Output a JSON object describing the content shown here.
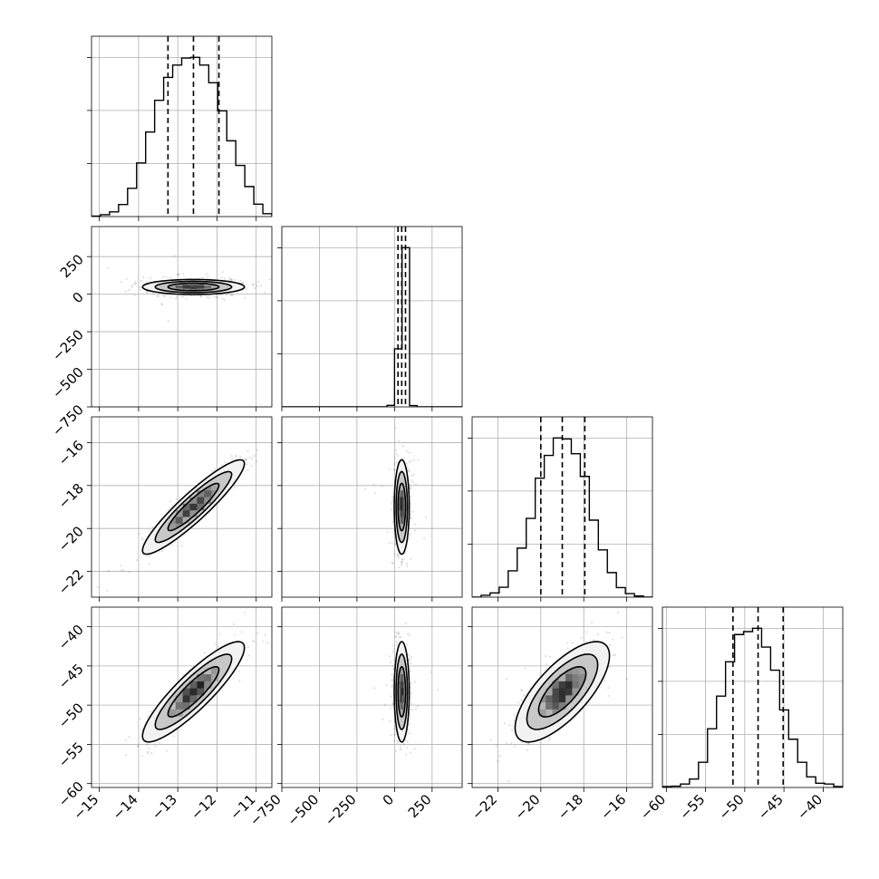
{
  "chart_data": {
    "type": "corner",
    "grid": true,
    "quantiles": [
      0.16,
      0.5,
      0.84
    ],
    "parameters": [
      {
        "range": [
          -15.2,
          -10.6
        ],
        "ticks": [
          -15,
          -14,
          -13,
          -12,
          -11
        ],
        "tick_labels": [
          "−15",
          "−14",
          "−13",
          "−12",
          "−11"
        ],
        "mean": -12.6,
        "sd": 0.65,
        "quantile_values": [
          -13.25,
          -12.6,
          -11.95
        ]
      },
      {
        "range": [
          -750,
          450
        ],
        "ticks": [
          -750,
          -500,
          -250,
          0,
          250
        ],
        "tick_labels": [
          "−750",
          "−500",
          "−250",
          "0",
          "250"
        ],
        "mean": 48,
        "sd": 25,
        "quantile_values": [
          23,
          48,
          73
        ]
      },
      {
        "range": [
          -23.2,
          -14.8
        ],
        "ticks": [
          -22,
          -20,
          -18,
          -16
        ],
        "tick_labels": [
          "−22",
          "−20",
          "−18",
          "−16"
        ],
        "mean": -19.0,
        "sd": 1.1,
        "quantile_values": [
          -20.0,
          -19.0,
          -17.95
        ]
      },
      {
        "range": [
          -60.5,
          -37.5
        ],
        "ticks": [
          -60,
          -55,
          -50,
          -45,
          -40
        ],
        "tick_labels": [
          "−60",
          "−55",
          "−50",
          "−45",
          "−40"
        ],
        "mean": -48.3,
        "sd": 3.2,
        "quantile_values": [
          -51.5,
          -48.3,
          -45.1
        ]
      }
    ],
    "histograms": [
      {
        "bin_edges": [
          -15.2,
          -14.97,
          -14.74,
          -14.51,
          -14.28,
          -14.05,
          -13.82,
          -13.59,
          -13.36,
          -13.13,
          -12.9,
          -12.67,
          -12.44,
          -12.21,
          -11.98,
          -11.75,
          -11.52,
          -11.29,
          -11.06,
          -10.83,
          -10.6
        ],
        "counts": [
          1,
          5,
          13,
          34,
          80,
          152,
          240,
          330,
          395,
          430,
          450,
          452,
          430,
          380,
          300,
          215,
          145,
          85,
          35,
          8
        ]
      },
      {
        "bin_edges": [
          -750,
          -700,
          -650,
          -600,
          -550,
          -500,
          -450,
          -400,
          -350,
          -300,
          -250,
          -200,
          -150,
          -100,
          -50,
          0,
          50,
          100,
          150,
          200,
          250,
          300,
          350,
          400,
          450
        ],
        "counts": [
          0,
          0,
          0,
          0,
          0,
          0,
          0,
          0,
          0,
          0,
          0,
          0,
          0,
          0,
          6,
          236,
          648,
          5,
          0,
          0,
          0,
          0,
          0,
          0
        ]
      },
      {
        "bin_edges": [
          -23.2,
          -22.78,
          -22.36,
          -21.94,
          -21.52,
          -21.1,
          -20.68,
          -20.26,
          -19.84,
          -19.42,
          -19.0,
          -18.58,
          -18.16,
          -17.74,
          -17.32,
          -16.9,
          -16.48,
          -16.06,
          -15.64,
          -15.22,
          -14.8
        ],
        "counts": [
          0,
          5,
          12,
          28,
          75,
          140,
          225,
          340,
          405,
          455,
          452,
          410,
          345,
          220,
          135,
          70,
          27,
          10,
          3,
          0
        ]
      },
      {
        "bin_edges": [
          -60.5,
          -59.35,
          -58.2,
          -57.05,
          -55.9,
          -54.75,
          -53.6,
          -52.45,
          -51.3,
          -50.15,
          -49.0,
          -47.85,
          -46.7,
          -45.55,
          -44.4,
          -43.25,
          -42.1,
          -40.95,
          -39.8,
          -38.65,
          -37.5
        ],
        "counts": [
          2,
          3,
          8,
          20,
          60,
          140,
          218,
          300,
          365,
          372,
          380,
          335,
          280,
          185,
          115,
          60,
          25,
          10,
          8,
          2
        ]
      }
    ],
    "pairs": [
      {
        "x_param": 0,
        "y_param": 1,
        "correlation": 0.0
      },
      {
        "x_param": 0,
        "y_param": 2,
        "correlation": 0.92
      },
      {
        "x_param": 1,
        "y_param": 2,
        "correlation": 0.0
      },
      {
        "x_param": 0,
        "y_param": 3,
        "correlation": 0.88
      },
      {
        "x_param": 1,
        "y_param": 3,
        "correlation": 0.0
      },
      {
        "x_param": 2,
        "y_param": 3,
        "correlation": 0.72
      }
    ],
    "contour_levels_sigma": [
      0.5,
      1.0,
      1.5,
      2.0
    ],
    "n_scatter_points": 420
  }
}
